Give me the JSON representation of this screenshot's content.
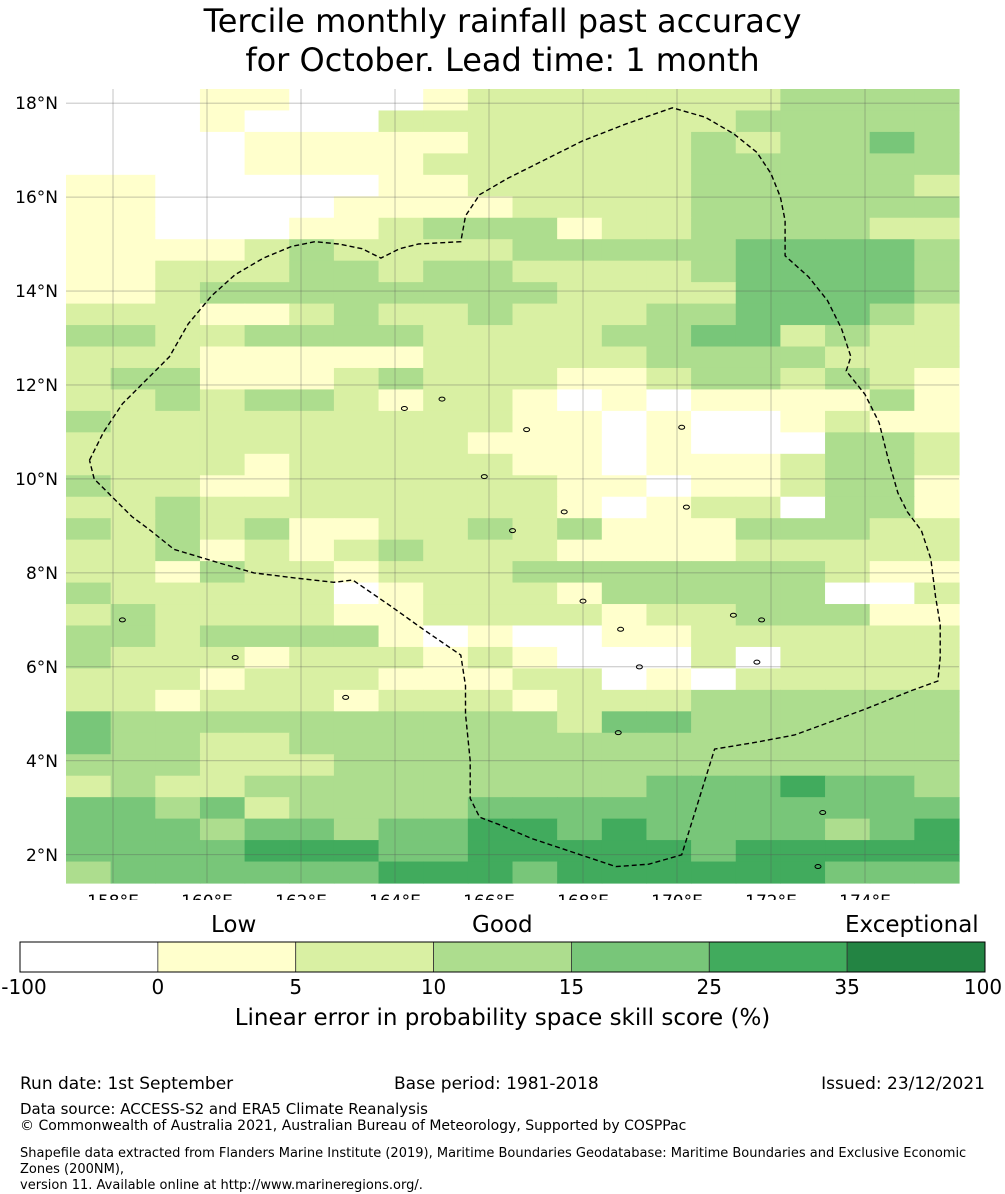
{
  "title": {
    "line1": "Tercile monthly rainfall past accuracy",
    "line2": "for October. Lead time: 1 month"
  },
  "map": {
    "lon_range": [
      157,
      176
    ],
    "lat_range": [
      1.4,
      18.3
    ],
    "lat_ticks": [
      {
        "value": 18,
        "label": "18°N"
      },
      {
        "value": 16,
        "label": "16°N"
      },
      {
        "value": 14,
        "label": "14°N"
      },
      {
        "value": 12,
        "label": "12°N"
      },
      {
        "value": 10,
        "label": "10°N"
      },
      {
        "value": 8,
        "label": "8°N"
      },
      {
        "value": 6,
        "label": "6°N"
      },
      {
        "value": 4,
        "label": "4°N"
      },
      {
        "value": 2,
        "label": "2°N"
      }
    ],
    "lon_ticks": [
      {
        "value": 158,
        "label": "158°E"
      },
      {
        "value": 160,
        "label": "160°E"
      },
      {
        "value": 162,
        "label": "162°E"
      },
      {
        "value": 164,
        "label": "164°E"
      },
      {
        "value": 166,
        "label": "166°E"
      },
      {
        "value": 168,
        "label": "168°E"
      },
      {
        "value": 170,
        "label": "170°E"
      },
      {
        "value": 172,
        "label": "172°E"
      },
      {
        "value": 174,
        "label": "174°E"
      }
    ],
    "grid": true,
    "boundary": "Exclusive Economic Zone outline (dashed)",
    "skill_grid_rows_north_to_south": [
      "00011000122222223333",
      "00010002222222233333",
      "00001111122222323343",
      "00001111222222333333",
      "11000001122222333332",
      "11000011112222333333",
      "11000112333122333322",
      "11112322223333344443",
      "11222332332222344443",
      "11233333333222244443",
      "22211232232223344432",
      "33223333222233442322",
      "22211111222223333222",
      "23311123222112332321",
      "22323321221010111131",
      "32222222221101001211",
      "22222222211101000332",
      "22221222221101112332",
      "32211222222110112331",
      "22322222222101220331",
      "32323112232311133322",
      "22312123222111122222",
      "22132212223333333211",
      "32222201222133333002",
      "23222211222212233311",
      "33233331010011222222",
      "32221222121000202222",
      "22212221112201022222",
      "22122212221222333333",
      "43333333333244333333",
      "43322333333333333333",
      "33322233333333333333",
      "23223333333334445443",
      "44342333344444444444",
      "44434434455454444345",
      "44445554455555455555",
      "34444445554555555444"
    ]
  },
  "colorbar": {
    "categories": [
      "Low",
      "Good",
      "Exceptional"
    ],
    "ticks": [
      "-100",
      "0",
      "5",
      "10",
      "15",
      "25",
      "35",
      "100"
    ],
    "colors": [
      "#ffffff",
      "#ffffcc",
      "#d9f0a3",
      "#addd8e",
      "#78c679",
      "#41ab5d",
      "#238443"
    ],
    "label": "Linear error in probability space skill score (%)"
  },
  "footer": {
    "run_date": "Run date: 1st September",
    "base_period": "Base period: 1981-2018",
    "issued": "Issued: 23/12/2021",
    "data_source": "Data source: ACCESS-S2 and ERA5 Climate Reanalysis",
    "copyright": "© Commonwealth of Australia 2021, Australian Bureau of Meteorology, Supported by COSPPac",
    "shapefile_line1": "Shapefile data extracted from Flanders Marine Institute (2019), Maritime Boundaries Geodatabase: Maritime Boundaries and Exclusive Economic Zones (200NM),",
    "shapefile_line2": "version 11. Available online at http://www.marineregions.org/."
  }
}
